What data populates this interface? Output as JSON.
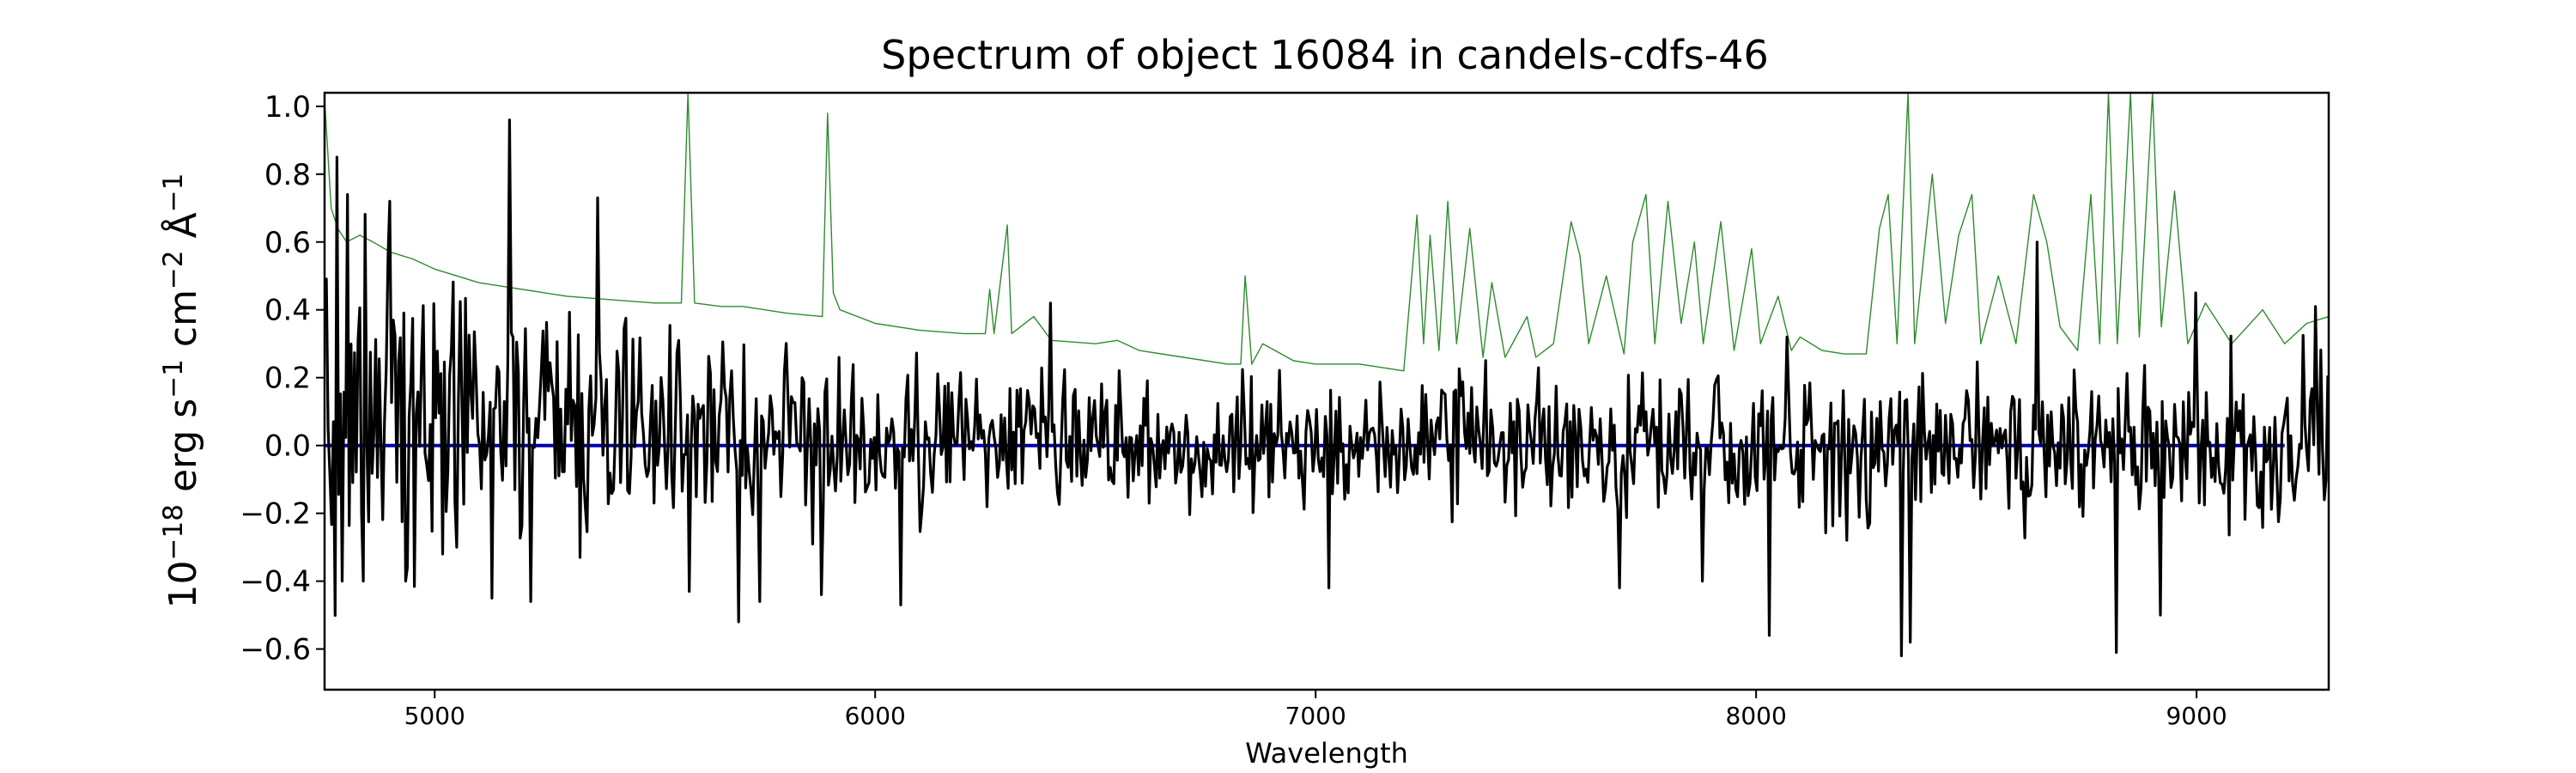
{
  "chart_data": {
    "type": "line",
    "title": "Spectrum of object 16084 in candels-cdfs-46",
    "xlabel": "Wavelength",
    "ylabel": "10^{-18} erg s^{-1} cm^{-2} Å^{-1}",
    "xlim": [
      4750,
      9300
    ],
    "ylim": [
      -0.72,
      1.04
    ],
    "xticks": [
      5000,
      6000,
      7000,
      8000,
      9000
    ],
    "xtick_labels": [
      "5000",
      "6000",
      "7000",
      "8000",
      "9000"
    ],
    "yticks": [
      -0.6,
      -0.4,
      -0.2,
      0.0,
      0.2,
      0.4,
      0.6,
      0.8,
      1.0
    ],
    "ytick_labels": [
      "−0.6",
      "−0.4",
      "−0.2",
      "0.0",
      "0.2",
      "0.4",
      "0.6",
      "0.8",
      "1.0"
    ],
    "grid": false,
    "legend": "none",
    "series": [
      {
        "role": "noise",
        "color": "#2e8b2e",
        "points": [
          [
            4750,
            1.02
          ],
          [
            4765,
            0.7
          ],
          [
            4780,
            0.64
          ],
          [
            4800,
            0.6
          ],
          [
            4830,
            0.62
          ],
          [
            4860,
            0.6
          ],
          [
            4900,
            0.57
          ],
          [
            4950,
            0.55
          ],
          [
            5000,
            0.52
          ],
          [
            5050,
            0.5
          ],
          [
            5100,
            0.48
          ],
          [
            5150,
            0.47
          ],
          [
            5200,
            0.46
          ],
          [
            5300,
            0.44
          ],
          [
            5400,
            0.43
          ],
          [
            5500,
            0.42
          ],
          [
            5560,
            0.42
          ],
          [
            5575,
            1.05
          ],
          [
            5590,
            0.42
          ],
          [
            5650,
            0.41
          ],
          [
            5700,
            0.41
          ],
          [
            5800,
            0.39
          ],
          [
            5880,
            0.38
          ],
          [
            5892,
            0.98
          ],
          [
            5905,
            0.45
          ],
          [
            5920,
            0.4
          ],
          [
            6000,
            0.36
          ],
          [
            6100,
            0.34
          ],
          [
            6200,
            0.33
          ],
          [
            6250,
            0.33
          ],
          [
            6260,
            0.46
          ],
          [
            6270,
            0.33
          ],
          [
            6300,
            0.65
          ],
          [
            6310,
            0.33
          ],
          [
            6360,
            0.38
          ],
          [
            6400,
            0.31
          ],
          [
            6500,
            0.3
          ],
          [
            6550,
            0.31
          ],
          [
            6600,
            0.28
          ],
          [
            6700,
            0.26
          ],
          [
            6800,
            0.24
          ],
          [
            6830,
            0.24
          ],
          [
            6840,
            0.5
          ],
          [
            6855,
            0.24
          ],
          [
            6880,
            0.3
          ],
          [
            6950,
            0.25
          ],
          [
            7000,
            0.24
          ],
          [
            7100,
            0.24
          ],
          [
            7200,
            0.22
          ],
          [
            7230,
            0.68
          ],
          [
            7245,
            0.3
          ],
          [
            7260,
            0.62
          ],
          [
            7280,
            0.28
          ],
          [
            7300,
            0.72
          ],
          [
            7320,
            0.3
          ],
          [
            7350,
            0.64
          ],
          [
            7380,
            0.26
          ],
          [
            7400,
            0.48
          ],
          [
            7430,
            0.26
          ],
          [
            7480,
            0.38
          ],
          [
            7500,
            0.26
          ],
          [
            7540,
            0.3
          ],
          [
            7580,
            0.66
          ],
          [
            7600,
            0.56
          ],
          [
            7620,
            0.3
          ],
          [
            7660,
            0.5
          ],
          [
            7700,
            0.27
          ],
          [
            7720,
            0.6
          ],
          [
            7750,
            0.74
          ],
          [
            7770,
            0.3
          ],
          [
            7800,
            0.72
          ],
          [
            7830,
            0.36
          ],
          [
            7860,
            0.6
          ],
          [
            7880,
            0.3
          ],
          [
            7920,
            0.66
          ],
          [
            7950,
            0.28
          ],
          [
            7990,
            0.58
          ],
          [
            8010,
            0.3
          ],
          [
            8050,
            0.44
          ],
          [
            8080,
            0.28
          ],
          [
            8100,
            0.32
          ],
          [
            8150,
            0.28
          ],
          [
            8200,
            0.27
          ],
          [
            8250,
            0.27
          ],
          [
            8280,
            0.64
          ],
          [
            8300,
            0.74
          ],
          [
            8320,
            0.3
          ],
          [
            8345,
            1.05
          ],
          [
            8360,
            0.3
          ],
          [
            8400,
            0.8
          ],
          [
            8430,
            0.36
          ],
          [
            8460,
            0.62
          ],
          [
            8490,
            0.74
          ],
          [
            8510,
            0.3
          ],
          [
            8550,
            0.5
          ],
          [
            8590,
            0.3
          ],
          [
            8630,
            0.74
          ],
          [
            8660,
            0.6
          ],
          [
            8690,
            0.35
          ],
          [
            8730,
            0.28
          ],
          [
            8760,
            0.74
          ],
          [
            8780,
            0.3
          ],
          [
            8800,
            1.05
          ],
          [
            8820,
            0.3
          ],
          [
            8850,
            1.05
          ],
          [
            8870,
            0.32
          ],
          [
            8900,
            1.05
          ],
          [
            8920,
            0.35
          ],
          [
            8950,
            0.75
          ],
          [
            8980,
            0.3
          ],
          [
            9020,
            0.42
          ],
          [
            9080,
            0.3
          ],
          [
            9150,
            0.4
          ],
          [
            9200,
            0.3
          ],
          [
            9250,
            0.36
          ],
          [
            9300,
            0.38
          ]
        ]
      },
      {
        "role": "model",
        "color": "#0000b0",
        "points": [
          [
            4750,
            0.0
          ],
          [
            9200,
            0.0
          ]
        ]
      },
      {
        "role": "flux",
        "color": "#000000",
        "seed": 16084,
        "step": 4,
        "anchors": [
          [
            4750,
            0.08,
            0.42
          ],
          [
            5000,
            0.12,
            0.4
          ],
          [
            5200,
            0.1,
            0.35
          ],
          [
            5500,
            0.04,
            0.26
          ],
          [
            6000,
            0.02,
            0.2
          ],
          [
            6500,
            0.01,
            0.16
          ],
          [
            7000,
            0.0,
            0.15
          ],
          [
            7500,
            0.0,
            0.16
          ],
          [
            8000,
            0.0,
            0.17
          ],
          [
            8500,
            0.0,
            0.2
          ],
          [
            9000,
            0.0,
            0.2
          ],
          [
            9300,
            0.02,
            0.22
          ]
        ],
        "spikes": [
          [
            4778,
            0.85
          ],
          [
            4790,
            -0.4
          ],
          [
            4805,
            0.74
          ],
          [
            4840,
            -0.4
          ],
          [
            4900,
            0.72
          ],
          [
            4935,
            -0.4
          ],
          [
            5050,
            -0.3
          ],
          [
            5130,
            -0.45
          ],
          [
            5170,
            0.96
          ],
          [
            5220,
            -0.46
          ],
          [
            5330,
            -0.33
          ],
          [
            5370,
            0.73
          ],
          [
            5580,
            -0.43
          ],
          [
            5690,
            -0.52
          ],
          [
            5740,
            -0.46
          ],
          [
            5880,
            -0.44
          ],
          [
            6060,
            -0.47
          ],
          [
            6400,
            0.42
          ],
          [
            7030,
            -0.42
          ],
          [
            7690,
            -0.42
          ],
          [
            7880,
            -0.4
          ],
          [
            8030,
            -0.56
          ],
          [
            8070,
            0.32
          ],
          [
            8330,
            -0.62
          ],
          [
            8350,
            -0.58
          ],
          [
            8640,
            0.6
          ],
          [
            8820,
            -0.61
          ],
          [
            8920,
            -0.5
          ],
          [
            9000,
            0.45
          ],
          [
            9270,
            0.41
          ]
        ]
      }
    ]
  }
}
